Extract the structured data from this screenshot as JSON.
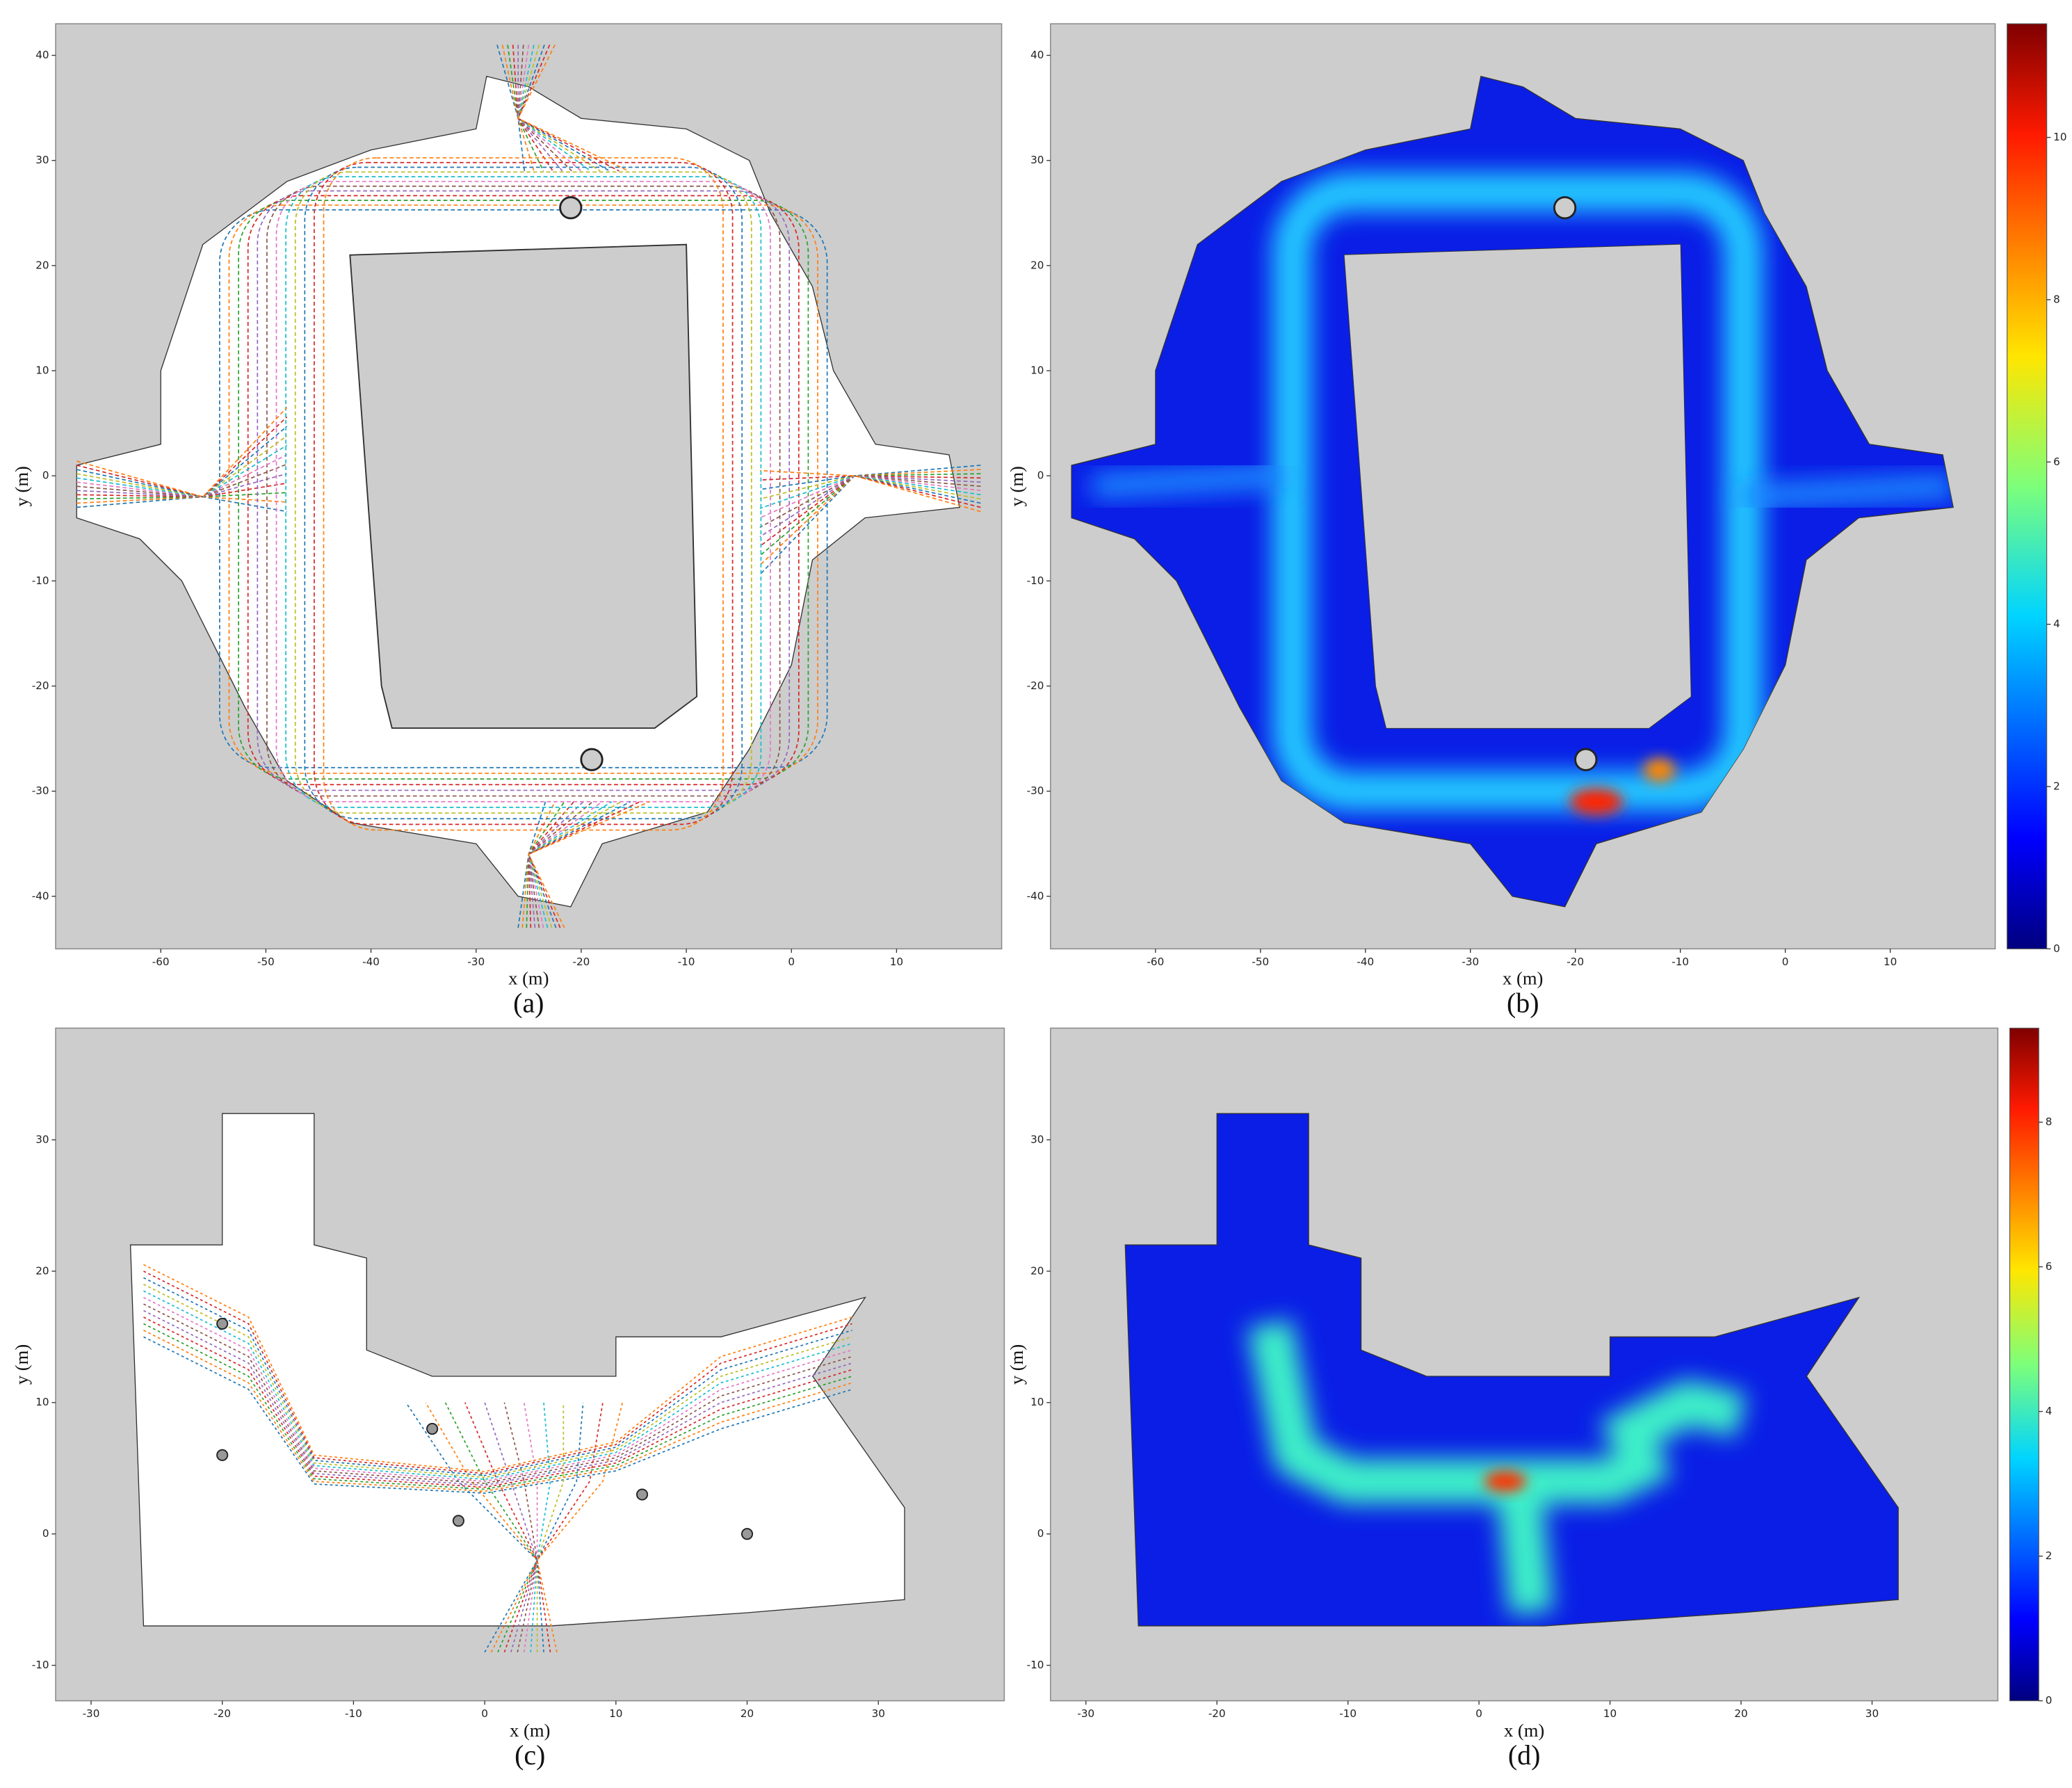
{
  "chart_data": [
    {
      "type": "trajectory_map",
      "caption": "(a)",
      "xlabel": "x (m)",
      "ylabel": "y (m)",
      "xlim": [
        -70,
        20
      ],
      "ylim": [
        -45,
        43
      ],
      "xticks": [
        -60,
        -50,
        -40,
        -30,
        -20,
        -10,
        0,
        10
      ],
      "yticks": [
        -40,
        -30,
        -20,
        -10,
        0,
        10,
        20,
        30,
        40
      ]
    },
    {
      "type": "heatmap",
      "caption": "(b)",
      "xlabel": "x (m)",
      "ylabel": "y (m)",
      "xlim": [
        -70,
        20
      ],
      "ylim": [
        -45,
        43
      ],
      "xticks": [
        -60,
        -50,
        -40,
        -30,
        -20,
        -10,
        0,
        10
      ],
      "yticks": [
        -40,
        -30,
        -20,
        -10,
        0,
        10,
        20,
        30,
        40
      ],
      "clim": [
        0,
        11.4
      ],
      "cticks": [
        0,
        2,
        4,
        6,
        8,
        10
      ]
    },
    {
      "type": "trajectory_map",
      "caption": "(c)",
      "xlabel": "x (m)",
      "ylabel": "y (m)",
      "xlim": [
        -32.7,
        39.6
      ],
      "ylim": [
        -12.7,
        38.5
      ],
      "xticks": [
        -30,
        -20,
        -10,
        0,
        10,
        20,
        30
      ],
      "yticks": [
        -10,
        0,
        10,
        20,
        30
      ]
    },
    {
      "type": "heatmap",
      "caption": "(d)",
      "xlabel": "x (m)",
      "ylabel": "y (m)",
      "xlim": [
        -32.7,
        39.6
      ],
      "ylim": [
        -12.7,
        38.5
      ],
      "xticks": [
        -30,
        -20,
        -10,
        0,
        10,
        20,
        30
      ],
      "yticks": [
        -10,
        0,
        10,
        20,
        30
      ],
      "clim": [
        0,
        9.3
      ],
      "cticks": [
        0,
        2,
        4,
        6,
        8
      ]
    }
  ]
}
